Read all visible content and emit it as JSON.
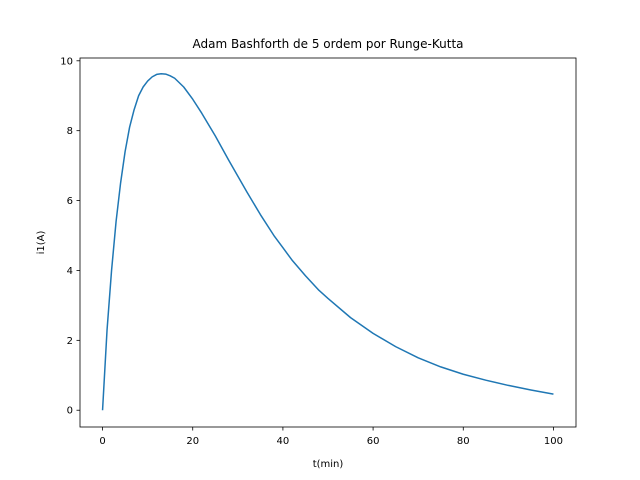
{
  "chart_data": {
    "type": "line",
    "title": "Adam Bashforth de 5 ordem por Runge-Kutta",
    "xlabel": "t(min)",
    "ylabel": "i1(A)",
    "xlim": [
      -5,
      105
    ],
    "ylim": [
      -0.48,
      10.08
    ],
    "x_ticks": [
      0,
      20,
      40,
      60,
      80,
      100
    ],
    "y_ticks": [
      0,
      2,
      4,
      6,
      8,
      10
    ],
    "grid": false,
    "legend": "none",
    "series": [
      {
        "color": "#1f77b4",
        "x": [
          0,
          1,
          2,
          3,
          4,
          5,
          6,
          7,
          8,
          9,
          10,
          11,
          12,
          13,
          14,
          15,
          16,
          18,
          20,
          22,
          25,
          28,
          30,
          32,
          35,
          38,
          40,
          42,
          45,
          48,
          50,
          55,
          60,
          65,
          70,
          75,
          80,
          85,
          90,
          95,
          100
        ],
        "y": [
          0.0,
          2.3,
          4.0,
          5.4,
          6.5,
          7.4,
          8.1,
          8.6,
          9.0,
          9.25,
          9.42,
          9.54,
          9.61,
          9.63,
          9.62,
          9.57,
          9.5,
          9.25,
          8.9,
          8.5,
          7.85,
          7.15,
          6.7,
          6.25,
          5.6,
          5.0,
          4.65,
          4.3,
          3.85,
          3.43,
          3.2,
          2.65,
          2.2,
          1.82,
          1.5,
          1.24,
          1.03,
          0.86,
          0.71,
          0.58,
          0.46
        ]
      }
    ]
  }
}
